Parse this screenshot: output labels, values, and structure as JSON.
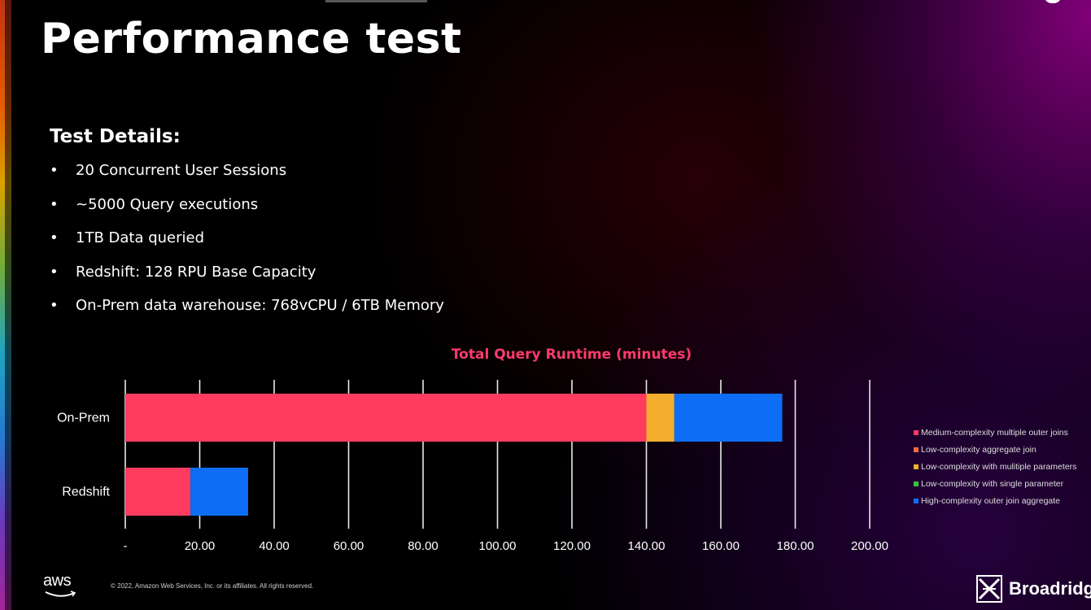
{
  "slide": {
    "title": "Performance test",
    "details_heading": "Test Details:",
    "details": [
      "20 Concurrent User Sessions",
      "~5000 Query executions",
      "1TB Data queried",
      "Redshift: 128 RPU Base Capacity",
      "On-Prem data warehouse: 768vCPU / 6TB Memory"
    ],
    "footer": "© 2022, Amazon Web Services, Inc. or its affiliates. All rights reserved.",
    "logo_left": "aws",
    "logo_right": "Broadridge"
  },
  "chart_data": {
    "type": "bar",
    "orientation": "horizontal",
    "stacked": true,
    "title": "Total Query Runtime (minutes)",
    "categories": [
      "On-Prem",
      "Redshift"
    ],
    "series": [
      {
        "name": "Medium-complexity multiple outer joins",
        "color": "#ff3b5f",
        "values": [
          140,
          17.5
        ]
      },
      {
        "name": "Low-complexity aggregate join",
        "color": "#ff6b4a",
        "values": [
          0,
          0
        ]
      },
      {
        "name": "Low-complexity with mulitiple parameters",
        "color": "#f4ae2e",
        "values": [
          7.5,
          0
        ]
      },
      {
        "name": "Low-complexity  with single parameter",
        "color": "#3fbf3f",
        "values": [
          0,
          0
        ]
      },
      {
        "name": "High-complexity outer join aggregate",
        "color": "#0d6ef5",
        "values": [
          29,
          15.5
        ]
      }
    ],
    "x_ticks": [
      "-",
      "20.00",
      "40.00",
      "60.00",
      "80.00",
      "100.00",
      "120.00",
      "140.00",
      "160.00",
      "180.00",
      "200.00"
    ],
    "xlim": [
      0,
      200
    ],
    "grid": true,
    "legend": "right"
  }
}
